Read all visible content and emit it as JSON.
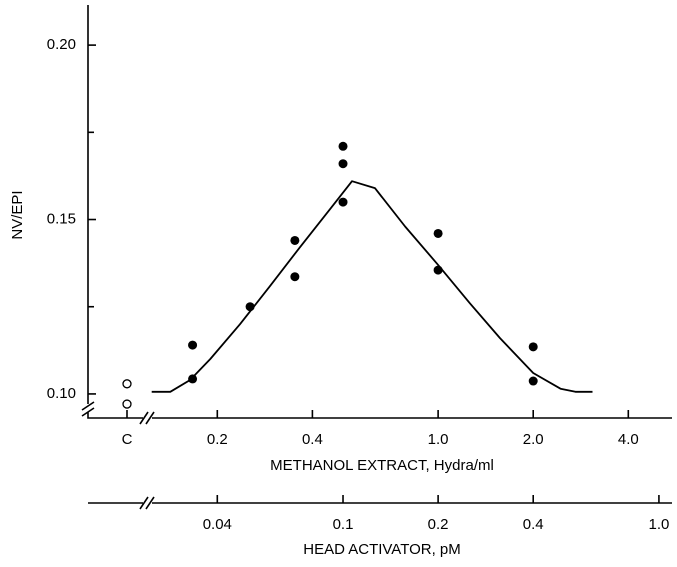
{
  "chart_data": {
    "type": "scatter",
    "ylabel": "NV/EPI",
    "xlabel": "METHANOL EXTRACT, Hydra/ml",
    "x2label": "HEAD ACTIVATOR, pM",
    "xscale": "log",
    "x2scale": "log",
    "ylim": [
      0.0931,
      0.2115
    ],
    "yticks": [
      {
        "value": 0.1,
        "label": "0.10"
      },
      {
        "value": 0.15,
        "label": "0.15"
      },
      {
        "value": 0.2,
        "label": "0.20"
      }
    ],
    "yminorticks": [
      0.125,
      0.175
    ],
    "xlim": [
      0.127,
      5.5
    ],
    "xticks": [
      0.2,
      0.4,
      {
        "value": 1,
        "label": "1.0"
      },
      {
        "value": 2,
        "label": "2.0"
      },
      {
        "value": 4,
        "label": "4.0"
      }
    ],
    "x2lim": [
      0.0254,
      1.1
    ],
    "x2ticks": [
      0.04,
      0.1,
      0.2,
      0.4,
      {
        "value": 1,
        "label": "1.0"
      }
    ],
    "control": {
      "category": "C",
      "values": [
        0.1029,
        0.0971
      ],
      "color": "#000000"
    },
    "series": [
      {
        "type": "scatter",
        "color": "#000000",
        "x": [
          0.167,
          0.167,
          0.254,
          0.352,
          0.352,
          0.5,
          0.5,
          0.5,
          1.0,
          1.0,
          2.0,
          2.0
        ],
        "values": [
          0.114,
          0.1043,
          0.125,
          0.144,
          0.1336,
          0.171,
          0.166,
          0.155,
          0.146,
          0.1355,
          0.1135,
          0.1037
        ]
      },
      {
        "type": "line",
        "color": "#000000",
        "x": [
          0.124,
          0.142,
          0.164,
          0.19,
          0.236,
          0.294,
          0.365,
          0.455,
          0.534,
          0.631,
          0.786,
          1.0,
          1.26,
          1.57,
          2.0,
          2.44,
          2.72,
          3.08
        ],
        "values": [
          0.1006,
          0.1006,
          0.104,
          0.11,
          0.12,
          0.131,
          0.142,
          0.153,
          0.161,
          0.159,
          0.148,
          0.137,
          0.126,
          0.116,
          0.106,
          0.1015,
          0.1006,
          0.1006
        ]
      }
    ]
  }
}
